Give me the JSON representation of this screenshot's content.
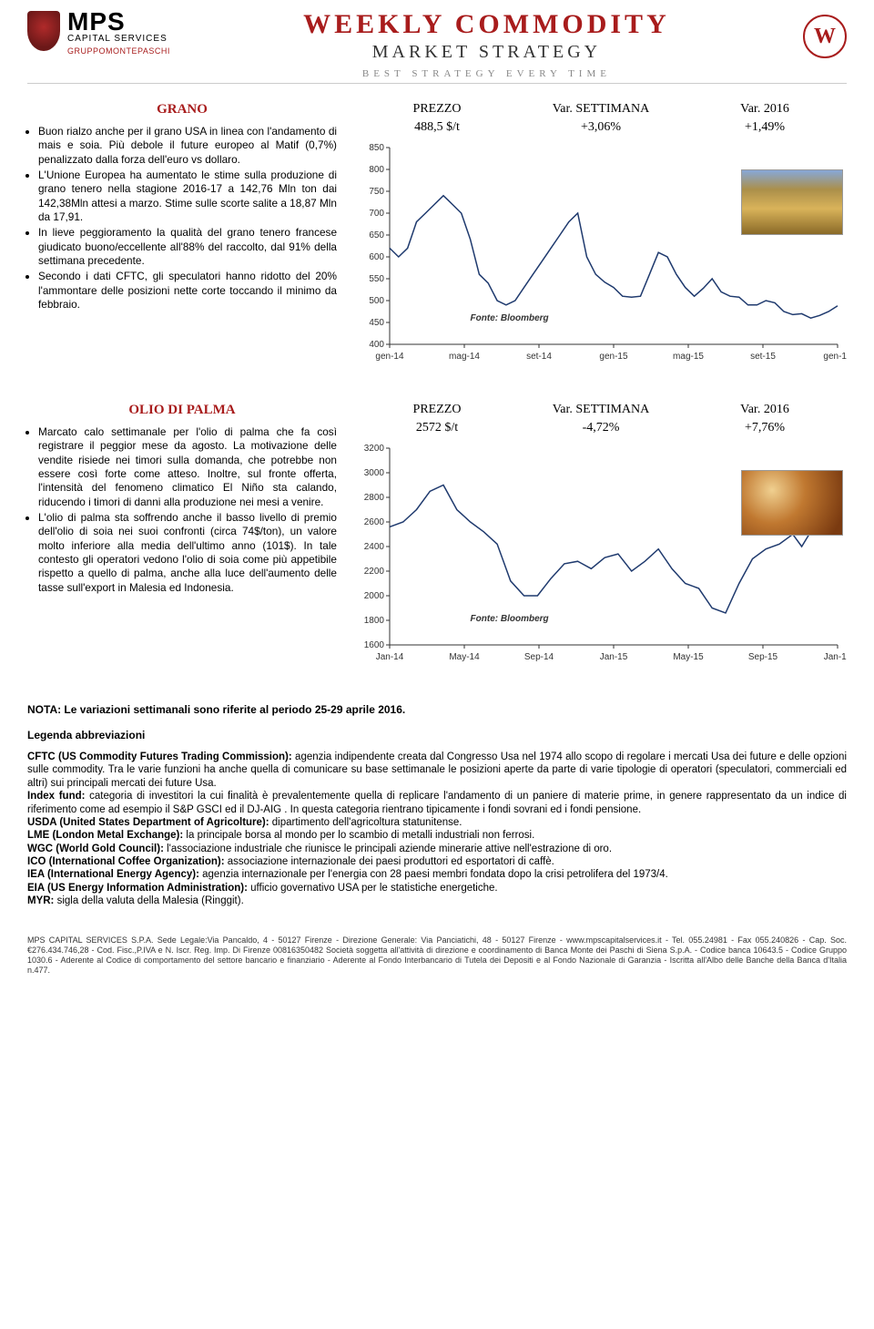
{
  "header": {
    "brand_main": "MPS",
    "brand_sub": "CAPITAL SERVICES",
    "brand_group": "GRUPPOMONTEPASCHI",
    "title_main": "WEEKLY COMMODITY",
    "title_sub": "MARKET STRATEGY",
    "tagline": "BEST STRATEGY EVERY TIME",
    "badge": "W"
  },
  "grano": {
    "title": "GRANO",
    "stat_labels": {
      "price": "PREZZO",
      "week": "Var. SETTIMANA",
      "year": "Var. 2016"
    },
    "stat_values": {
      "price": "488,5 $/t",
      "week": "+3,06%",
      "year": "+1,49%"
    },
    "bullets": [
      "Buon rialzo anche per il grano USA in linea con l'andamento di mais e soia. Più debole il future europeo al Matif (0,7%) penalizzato dalla forza dell'euro vs dollaro.",
      "L'Unione Europea ha aumentato le stime sulla produzione di grano tenero nella stagione 2016-17 a 142,76 Mln ton dai 142,38Mln attesi a marzo. Stime sulle scorte salite a 18,87 Mln da 17,91.",
      "In lieve peggioramento la qualità del grano tenero francese giudicato buono/eccellente all'88% del raccolto, dal 91% della settimana precedente.",
      "Secondo i dati CFTC, gli speculatori hanno ridotto del 20% l'ammontare delle posizioni nette corte toccando il minimo da febbraio."
    ],
    "chart": {
      "type": "line",
      "ylim": [
        400,
        850
      ],
      "ytick_step": 50,
      "xlabels": [
        "gen-14",
        "mag-14",
        "set-14",
        "gen-15",
        "mag-15",
        "set-15",
        "gen-16"
      ],
      "line_color": "#1f3a6e",
      "line_width": 1.5,
      "source_label": "Fonte: Bloomberg",
      "series": [
        [
          0,
          620
        ],
        [
          2,
          600
        ],
        [
          4,
          620
        ],
        [
          6,
          680
        ],
        [
          8,
          700
        ],
        [
          10,
          720
        ],
        [
          12,
          740
        ],
        [
          13,
          730
        ],
        [
          14,
          720
        ],
        [
          16,
          700
        ],
        [
          18,
          640
        ],
        [
          20,
          560
        ],
        [
          22,
          540
        ],
        [
          24,
          500
        ],
        [
          26,
          490
        ],
        [
          28,
          500
        ],
        [
          30,
          530
        ],
        [
          32,
          560
        ],
        [
          34,
          590
        ],
        [
          36,
          620
        ],
        [
          38,
          650
        ],
        [
          40,
          680
        ],
        [
          42,
          700
        ],
        [
          44,
          600
        ],
        [
          46,
          560
        ],
        [
          48,
          542
        ],
        [
          50,
          530
        ],
        [
          52,
          510
        ],
        [
          54,
          508
        ],
        [
          56,
          510
        ],
        [
          58,
          560
        ],
        [
          60,
          610
        ],
        [
          62,
          600
        ],
        [
          64,
          560
        ],
        [
          66,
          530
        ],
        [
          68,
          510
        ],
        [
          70,
          528
        ],
        [
          72,
          550
        ],
        [
          74,
          520
        ],
        [
          76,
          510
        ],
        [
          78,
          508
        ],
        [
          80,
          490
        ],
        [
          82,
          490
        ],
        [
          84,
          500
        ],
        [
          86,
          495
        ],
        [
          88,
          475
        ],
        [
          90,
          468
        ],
        [
          92,
          470
        ],
        [
          94,
          460
        ],
        [
          96,
          466
        ],
        [
          98,
          475
        ],
        [
          100,
          488
        ]
      ]
    }
  },
  "palma": {
    "title": "OLIO DI PALMA",
    "stat_labels": {
      "price": "PREZZO",
      "week": "Var. SETTIMANA",
      "year": "Var. 2016"
    },
    "stat_values": {
      "price": "2572 $/t",
      "week": "-4,72%",
      "year": "+7,76%"
    },
    "bullets": [
      "Marcato calo settimanale per l'olio di palma che fa così registrare il peggior mese da agosto. La motivazione delle vendite risiede nei timori sulla domanda, che potrebbe non essere così forte come atteso. Inoltre, sul fronte offerta, l'intensità del fenomeno climatico El Niño sta calando, riducendo i timori di danni alla produzione nei mesi a venire.",
      "L'olio di palma sta soffrendo anche il basso livello di premio dell'olio di soia nei suoi confronti (circa 74$/ton), un valore molto inferiore alla media dell'ultimo anno (101$). In tale contesto gli operatori vedono l'olio di soia come più appetibile rispetto a quello di palma, anche alla luce dell'aumento delle tasse sull'export in Malesia ed Indonesia."
    ],
    "chart": {
      "type": "line",
      "ylim": [
        1600,
        3200
      ],
      "ytick_step": 200,
      "xlabels": [
        "Jan-14",
        "May-14",
        "Sep-14",
        "Jan-15",
        "May-15",
        "Sep-15",
        "Jan-16"
      ],
      "line_color": "#1f3a6e",
      "line_width": 1.5,
      "source_label": "Fonte: Bloomberg",
      "series": [
        [
          0,
          2560
        ],
        [
          3,
          2600
        ],
        [
          6,
          2700
        ],
        [
          9,
          2850
        ],
        [
          12,
          2900
        ],
        [
          15,
          2700
        ],
        [
          18,
          2600
        ],
        [
          21,
          2520
        ],
        [
          24,
          2420
        ],
        [
          27,
          2120
        ],
        [
          30,
          2000
        ],
        [
          33,
          2000
        ],
        [
          36,
          2140
        ],
        [
          39,
          2260
        ],
        [
          42,
          2280
        ],
        [
          45,
          2220
        ],
        [
          48,
          2310
        ],
        [
          51,
          2340
        ],
        [
          54,
          2200
        ],
        [
          57,
          2280
        ],
        [
          60,
          2380
        ],
        [
          63,
          2220
        ],
        [
          66,
          2100
        ],
        [
          69,
          2060
        ],
        [
          72,
          1900
        ],
        [
          75,
          1860
        ],
        [
          78,
          2100
        ],
        [
          81,
          2300
        ],
        [
          84,
          2380
        ],
        [
          87,
          2420
        ],
        [
          90,
          2500
        ],
        [
          92,
          2400
        ],
        [
          94,
          2520
        ],
        [
          96,
          2700
        ],
        [
          98,
          2780
        ],
        [
          100,
          2572
        ]
      ]
    }
  },
  "note": "NOTA: Le variazioni settimanali sono riferite al periodo  25-29 aprile 2016.",
  "legend_h": "Legenda abbreviazioni",
  "legend_body": "CFTC (US Commodity Futures Trading Commission): agenzia indipendente creata dal Congresso Usa nel 1974 allo scopo di regolare i mercati Usa dei future e delle opzioni sulle commodity. Tra le varie funzioni ha anche quella di comunicare su base settimanale le posizioni aperte da parte di varie tipologie di operatori (speculatori, commerciali ed altri) sui principali mercati dei future Usa.\nIndex fund: categoria di investitori la cui finalità è prevalentemente quella di replicare l'andamento di un paniere di materie prime, in genere rappresentato da un indice di riferimento come ad esempio il S&P GSCI ed il DJ-AIG . In questa categoria rientrano tipicamente i fondi sovrani ed i fondi pensione.\nUSDA (United States Department of Agricolture): dipartimento dell'agricoltura statunitense.\nLME (London Metal Exchange): la principale borsa al mondo per lo scambio di metalli industriali non ferrosi.\nWGC (World Gold Council): l'associazione industriale che riunisce le principali aziende minerarie attive nell'estrazione di oro.\nICO (International Coffee Organization): associazione internazionale dei paesi produttori ed esportatori di caffè.\nIEA (International Energy Agency): agenzia internazionale per l'energia con 28 paesi membri fondata dopo la crisi petrolifera del 1973/4.\nEIA (US Energy Information Administration): ufficio governativo USA per le statistiche energetiche.\nMYR: sigla della valuta della Malesia (Ringgit).",
  "footer": "MPS CAPITAL SERVICES S.P.A. Sede Legale:Via Pancaldo, 4 - 50127 Firenze - Direzione Generale: Via Panciatichi, 48 - 50127 Firenze - www.mpscapitalservices.it - Tel. 055.24981 - Fax 055.240826 - Cap. Soc. €276.434.746,28 - Cod. Fisc.,P.IVA e N. Iscr. Reg. Imp. Di Firenze 00816350482 Società soggetta all'attività di direzione e coordinamento di Banca Monte dei Paschi di Siena S.p.A. - Codice banca 10643.5 - Codice Gruppo 1030.6 - Aderente al Codice di comportamento del settore bancario e finanziario - Aderente al Fondo Interbancario di Tutela dei Depositi e al Fondo Nazionale di Garanzia - Iscritta all'Albo delle Banche della Banca d'Italia n.477."
}
